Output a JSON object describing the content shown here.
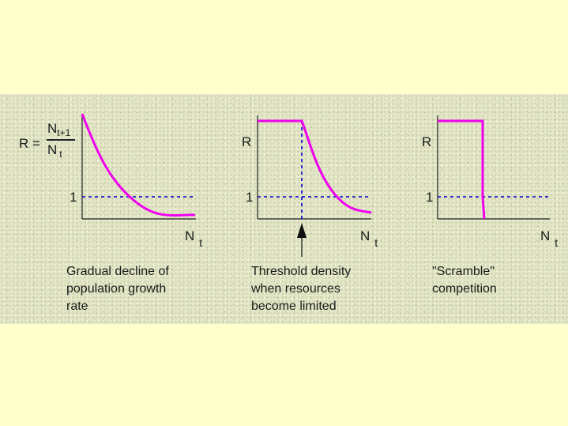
{
  "colors": {
    "page_background": "#ffffcc",
    "curve": "#ee00ee",
    "dashed": "#0000cc",
    "axis": "#222222"
  },
  "formula": {
    "lhs": "R =",
    "numerator_main": "N",
    "numerator_sub": "t+1",
    "denominator_main": "N",
    "denominator_sub": "t"
  },
  "panels": [
    {
      "id": "gradual",
      "y_label": "",
      "one_label": "1",
      "x_label_main": "N",
      "x_label_sub": "t",
      "caption": [
        "Gradual decline of",
        "population growth",
        "rate"
      ]
    },
    {
      "id": "threshold",
      "y_label": "R",
      "one_label": "1",
      "x_label_main": "N",
      "x_label_sub": "t",
      "caption": [
        "Threshold density",
        "when resources",
        "become limited"
      ]
    },
    {
      "id": "scramble",
      "y_label": "R",
      "one_label": "1",
      "x_label_main": "N",
      "x_label_sub": "t",
      "caption": [
        "\"Scramble\"",
        "competition"
      ]
    }
  ]
}
